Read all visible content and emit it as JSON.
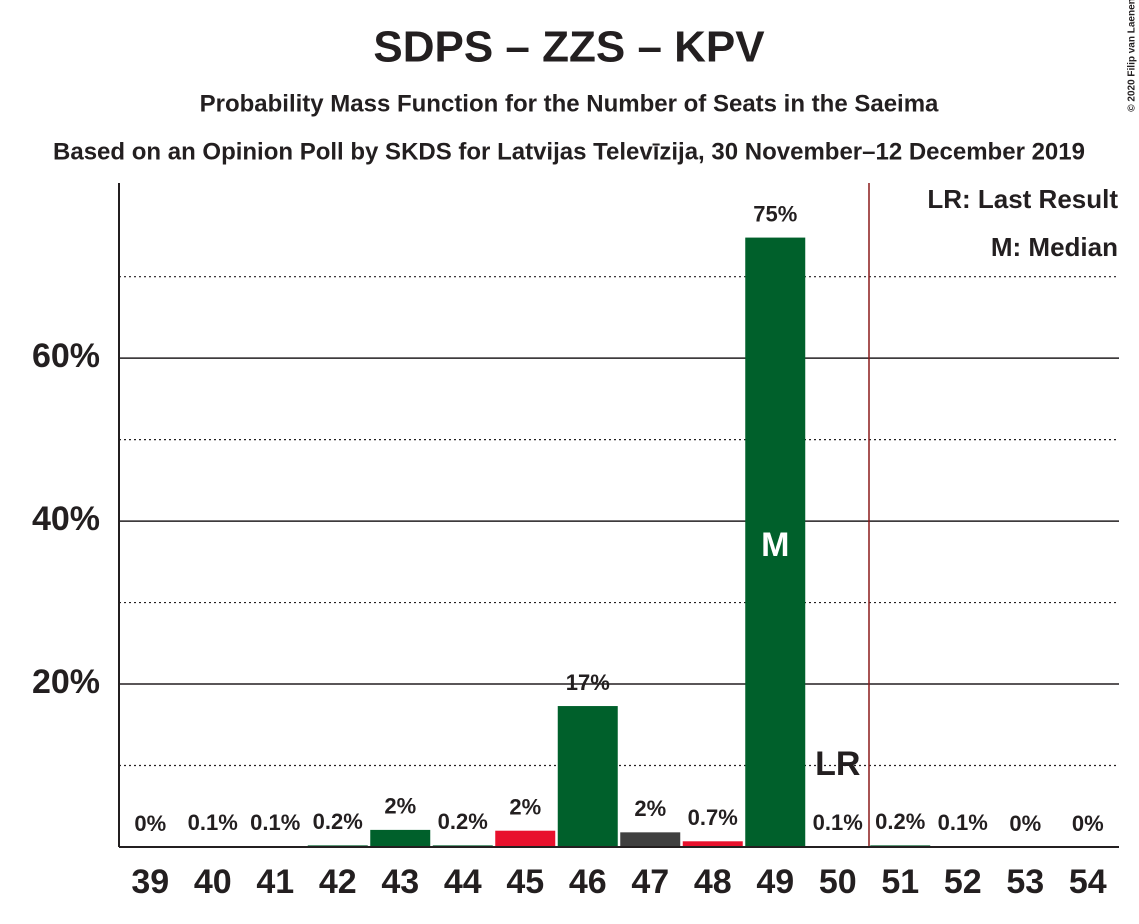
{
  "chart_data": {
    "type": "bar",
    "title": "SDPS – ZZS – KPV",
    "subtitle": "Probability Mass Function for the Number of Seats in the Saeima",
    "subtitle2": "Based on an Opinion Poll by SKDS for Latvijas Televīzija, 30 November–12 December 2019",
    "copyright": "© 2020 Filip van Laenen",
    "categories": [
      "39",
      "40",
      "41",
      "42",
      "43",
      "44",
      "45",
      "46",
      "47",
      "48",
      "49",
      "50",
      "51",
      "52",
      "53",
      "54"
    ],
    "values": [
      0,
      0.1,
      0.1,
      0.2,
      2.1,
      0.2,
      2.0,
      17.3,
      1.8,
      0.7,
      74.8,
      0.1,
      0.2,
      0.1,
      0,
      0
    ],
    "value_labels": [
      "0%",
      "0.1%",
      "0.1%",
      "0.2%",
      "2%",
      "0.2%",
      "2%",
      "17%",
      "2%",
      "0.7%",
      "75%",
      "0.1%",
      "0.2%",
      "0.1%",
      "0%",
      "0%"
    ],
    "colors": [
      "#00602b",
      "#00602b",
      "#00602b",
      "#00602b",
      "#00602b",
      "#00602b",
      "#e8112d",
      "#00602b",
      "#404040",
      "#e8112d",
      "#00602b",
      "#00602b",
      "#00602b",
      "#00602b",
      "#00602b",
      "#00602b"
    ],
    "ylim": [
      0,
      81.5
    ],
    "yticks": [
      {
        "value": 20,
        "label": "20%"
      },
      {
        "value": 40,
        "label": "40%"
      },
      {
        "value": 60,
        "label": "60%"
      }
    ],
    "minor_yticks": [
      10,
      30,
      50,
      70
    ],
    "grid": true,
    "median_index": 10,
    "median_label": "M",
    "last_result_index": 11,
    "last_result_label": "LR",
    "threshold_after_index": 11,
    "legend": [
      "LR: Last Result",
      "M: Median"
    ]
  }
}
